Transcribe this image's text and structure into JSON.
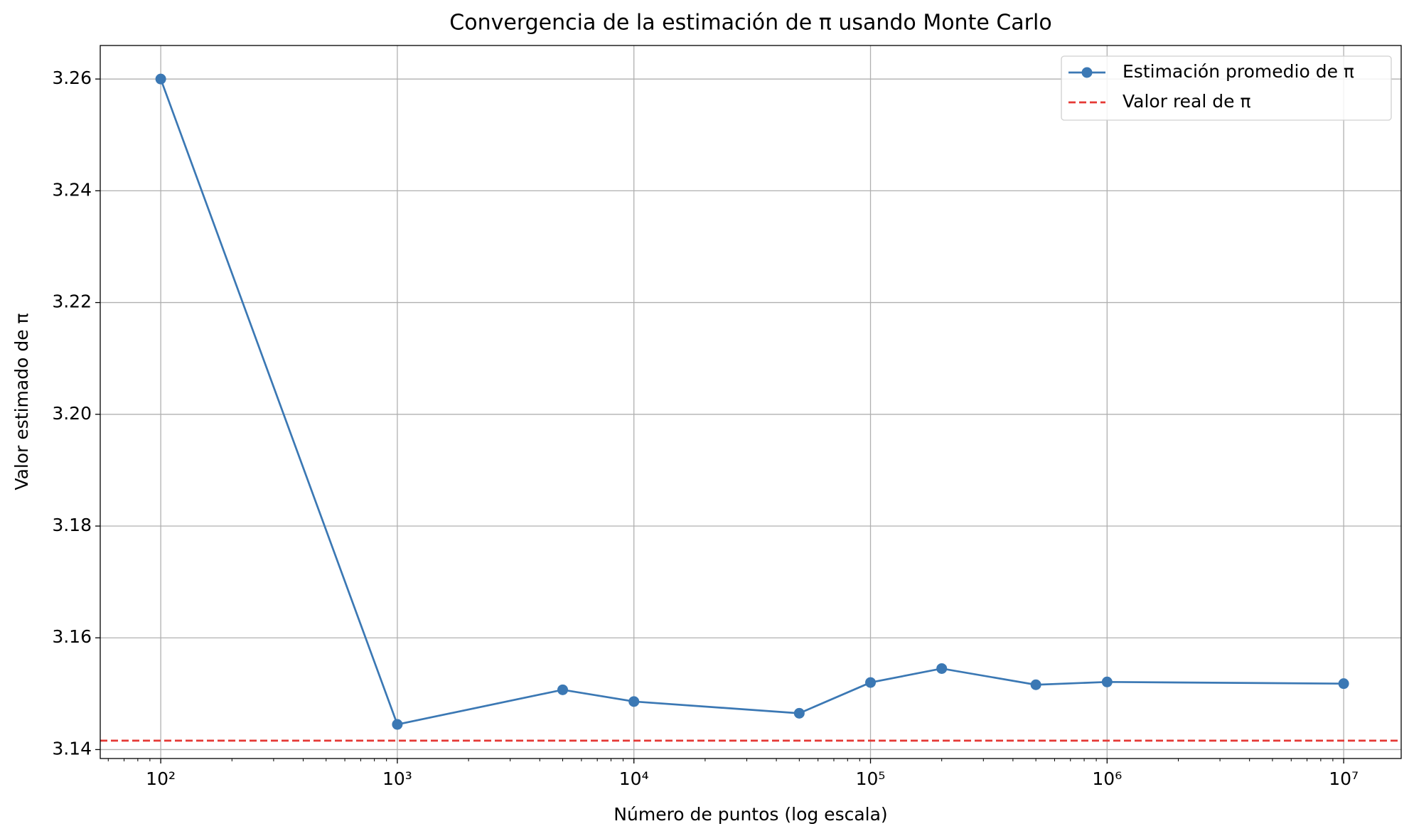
{
  "chart_data": {
    "type": "line",
    "title": "Convergencia de la estimación de π usando Monte Carlo",
    "x_label": "Número de puntos (log escala)",
    "y_label": "Valor estimado de π",
    "x": [
      100,
      1000,
      5000,
      10000,
      50000,
      100000,
      200000,
      500000,
      1000000,
      10000000
    ],
    "series": [
      {
        "name": "Estimación promedio de π",
        "color": "#3b78b4",
        "marker": "o",
        "values": [
          3.26,
          3.1445,
          3.1507,
          3.1486,
          3.1465,
          3.152,
          3.1545,
          3.1516,
          3.1521,
          3.1518
        ]
      },
      {
        "name": "Valor real de π",
        "color": "#e53935",
        "linestyle": "dashed",
        "value": 3.1416
      }
    ],
    "xscale": "log",
    "xlim": [
      55.5,
      17500000
    ],
    "xticks": [
      {
        "value": 100,
        "label": "10²"
      },
      {
        "value": 1000,
        "label": "10³"
      },
      {
        "value": 10000,
        "label": "10⁴"
      },
      {
        "value": 100000,
        "label": "10⁵"
      },
      {
        "value": 1000000,
        "label": "10⁶"
      },
      {
        "value": 10000000,
        "label": "10⁷"
      }
    ],
    "ylim": [
      3.1384,
      3.266
    ],
    "yticks": [
      3.14,
      3.16,
      3.18,
      {
        "value": 3.2,
        "label": "3.20"
      },
      3.22,
      3.24,
      3.26
    ],
    "grid": true,
    "legend": "upper right"
  }
}
